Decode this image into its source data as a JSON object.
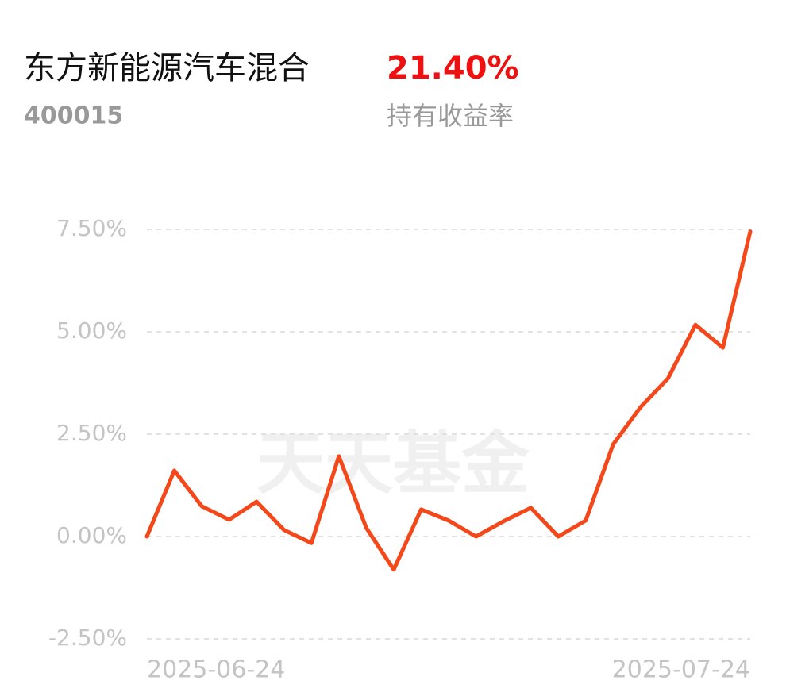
{
  "fund": {
    "name": "东方新能源汽车混合",
    "code": "400015",
    "return": "21.40%",
    "return_label": "持有收益率"
  },
  "chart_data": {
    "type": "line",
    "watermark": "天天基金",
    "categories": [
      "2025-06-24",
      null,
      null,
      null,
      null,
      null,
      null,
      null,
      null,
      null,
      null,
      null,
      null,
      null,
      null,
      null,
      null,
      null,
      null,
      null,
      null,
      null,
      "2025-07-24"
    ],
    "series": [
      {
        "color": "#f4481a",
        "values": [
          0,
          1.61,
          0.74,
          0.41,
          0.85,
          0.16,
          -0.16,
          1.96,
          0.21,
          -0.81,
          0.66,
          0.39,
          0,
          0.37,
          0.7,
          0,
          0.39,
          2.25,
          3.16,
          3.86,
          5.17,
          4.61,
          7.45
        ]
      }
    ],
    "ylim": [
      -2.5,
      7.5
    ],
    "yticks": [
      {
        "value": -2.5,
        "label": "-2.50%"
      },
      {
        "value": 0,
        "label": "0.00%"
      },
      {
        "value": 2.5,
        "label": "2.50%"
      },
      {
        "value": 5,
        "label": "5.00%"
      },
      {
        "value": 7.5,
        "label": "7.50%"
      }
    ],
    "grid": true
  }
}
